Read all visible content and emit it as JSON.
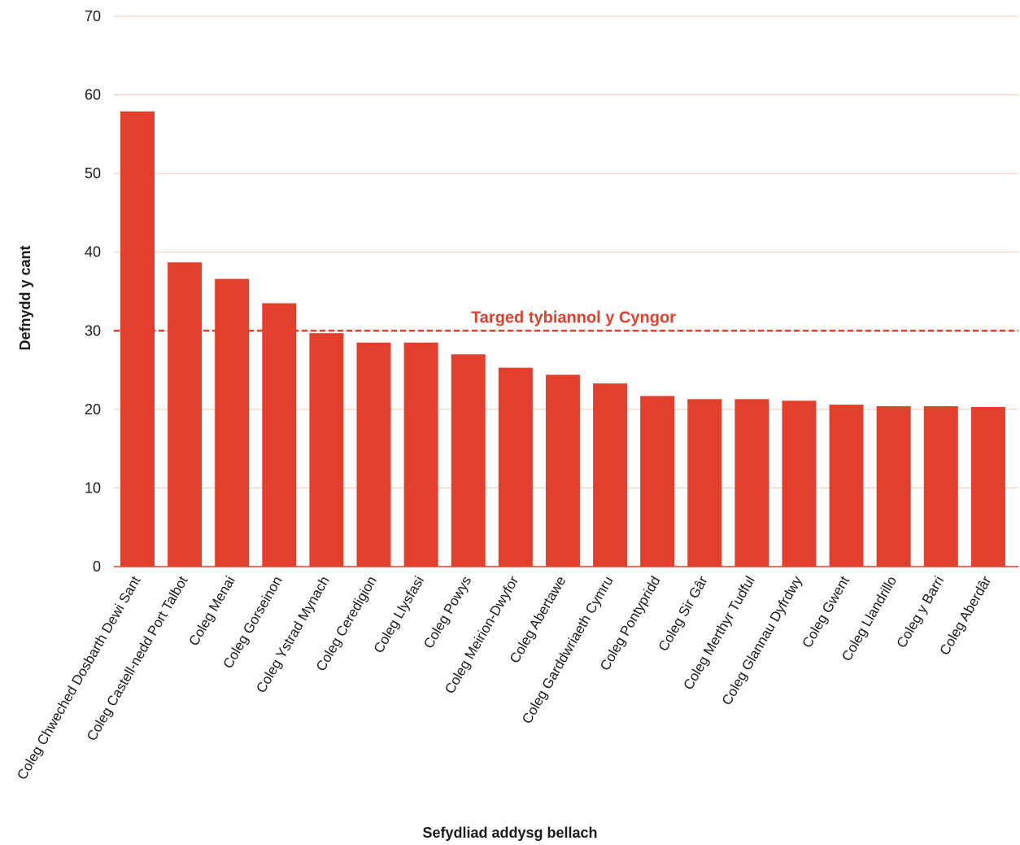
{
  "chart_data": {
    "type": "bar",
    "title": "",
    "xlabel": "Sefydliad addysg bellach",
    "ylabel": "Defnydd y cant",
    "ylim": [
      0,
      70
    ],
    "yticks": [
      0,
      10,
      20,
      30,
      40,
      50,
      60,
      70
    ],
    "grid": true,
    "legend": "none",
    "categories": [
      "Coleg Chweched Dosbarth Dewi Sant",
      "Coleg Castell-nedd Port Talbot",
      "Coleg Menai",
      "Coleg Gorseinon",
      "Coleg Ystrad Mynach",
      "Coleg Ceredigion",
      "Coleg Llysfasi",
      "Coleg Powys",
      "Coleg Meirion-Dwyfor",
      "Coleg Abertawe",
      "Coleg Garddwriaeth Cymru",
      "Coleg Pontypridd",
      "Coleg Sir Gâr",
      "Coleg Merthyr Tudful",
      "Coleg Glannau Dyfrdwy",
      "Coleg Gwent",
      "Coleg Llandrillo",
      "Coleg y Barri",
      "Coleg Aberdâr"
    ],
    "values": [
      57.9,
      38.7,
      36.6,
      33.5,
      29.7,
      28.5,
      28.5,
      27.0,
      25.3,
      24.4,
      23.3,
      21.7,
      21.3,
      21.3,
      21.1,
      20.6,
      20.4,
      20.4,
      20.3
    ],
    "reference_line": {
      "value": 30,
      "label": "Targed tybiannol y Cyngor",
      "style": "dashed"
    },
    "colors": {
      "bar": "#e2402c",
      "reference": "#e2402c",
      "grid": "#f2c8b8",
      "axis": "#e2402c"
    }
  }
}
